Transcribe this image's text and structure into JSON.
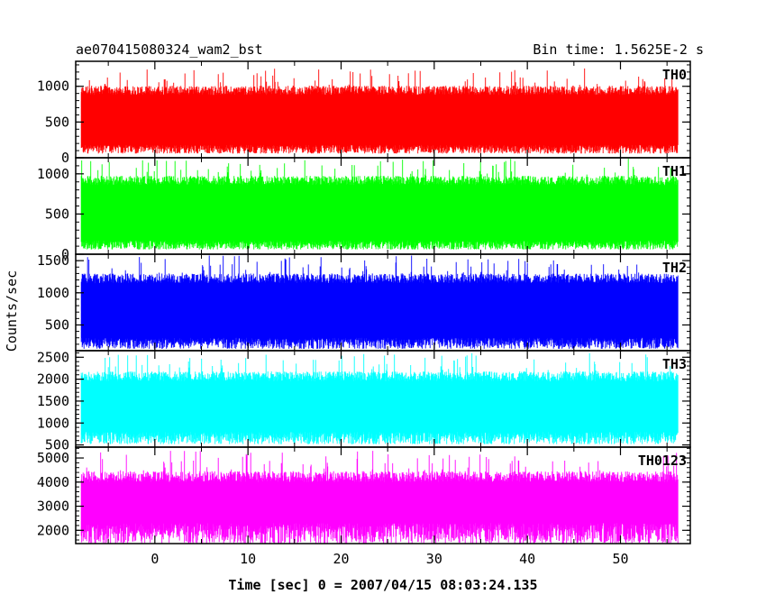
{
  "chart_data": {
    "type": "line",
    "title_left": "ae070415080324_wam2_bst",
    "title_right": "Bin time: 1.5625E-2 s",
    "xlabel": "Time [sec] 0 = 2007/04/15 08:03:24.135",
    "ylabel": "Counts/sec",
    "xlim": [
      -8.5,
      57.5
    ],
    "data_xrange": [
      -7.9,
      56.2
    ],
    "xticks": [
      0,
      10,
      20,
      30,
      40,
      50
    ],
    "panels": [
      {
        "name": "TH0",
        "color": "#ff0000",
        "ylim": [
          0,
          1350
        ],
        "yticks": [
          0,
          500,
          1000
        ],
        "base": 60,
        "lo": 180,
        "hi": 880,
        "spike": 1250
      },
      {
        "name": "TH1",
        "color": "#00ff00",
        "ylim": [
          0,
          1200
        ],
        "yticks": [
          0,
          500,
          1000
        ],
        "base": 60,
        "lo": 170,
        "hi": 860,
        "spike": 1190
      },
      {
        "name": "TH2",
        "color": "#0000ff",
        "ylim": [
          100,
          1600
        ],
        "yticks": [
          500,
          1000,
          1500
        ],
        "base": 130,
        "lo": 300,
        "hi": 1150,
        "spike": 1580
      },
      {
        "name": "TH3",
        "color": "#00ffff",
        "ylim": [
          450,
          2650
        ],
        "yticks": [
          500,
          1000,
          1500,
          2000,
          2500
        ],
        "base": 520,
        "lo": 800,
        "hi": 1950,
        "spike": 2600
      },
      {
        "name": "TH0123",
        "color": "#ff00ff",
        "ylim": [
          1450,
          5450
        ],
        "yticks": [
          2000,
          3000,
          4000,
          5000
        ],
        "base": 1450,
        "lo": 2300,
        "hi": 4000,
        "spike": 5300
      }
    ]
  }
}
